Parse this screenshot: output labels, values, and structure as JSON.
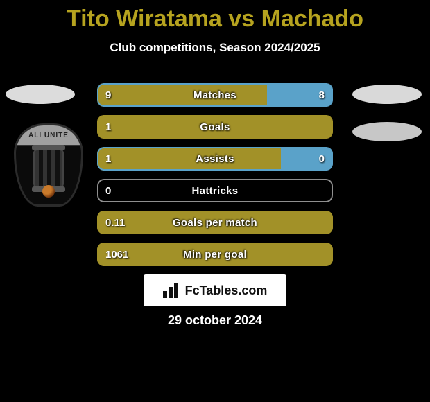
{
  "header": {
    "title": "Tito Wiratama vs Machado",
    "title_color": "#b6a31f",
    "subtitle": "Club competitions, Season 2024/2025"
  },
  "crest": {
    "banner_text": "ALI UNITE"
  },
  "palette": {
    "olive_fill": "#a29128",
    "olive_border": "#a29128",
    "blue_fill": "#5aa2c9",
    "blue_border": "#5aa2c9",
    "empty_border": "#8f8f8f"
  },
  "bars": [
    {
      "label": "Matches",
      "left_val": "9",
      "right_val": "8",
      "left_fill": "olive",
      "right_fill": "blue",
      "left_pct": 72,
      "right_pct": 28
    },
    {
      "label": "Goals",
      "left_val": "1",
      "right_val": "",
      "left_fill": "olive",
      "right_fill": "none",
      "left_pct": 100,
      "right_pct": 0
    },
    {
      "label": "Assists",
      "left_val": "1",
      "right_val": "0",
      "left_fill": "olive",
      "right_fill": "blue",
      "left_pct": 78,
      "right_pct": 22
    },
    {
      "label": "Hattricks",
      "left_val": "0",
      "right_val": "",
      "left_fill": "none",
      "right_fill": "none",
      "left_pct": 0,
      "right_pct": 0
    },
    {
      "label": "Goals per match",
      "left_val": "0.11",
      "right_val": "",
      "left_fill": "olive",
      "right_fill": "none",
      "left_pct": 100,
      "right_pct": 0
    },
    {
      "label": "Min per goal",
      "left_val": "1061",
      "right_val": "",
      "left_fill": "olive",
      "right_fill": "none",
      "left_pct": 100,
      "right_pct": 0
    }
  ],
  "branding": {
    "text": "FcTables.com"
  },
  "footer": {
    "date": "29 october 2024"
  }
}
